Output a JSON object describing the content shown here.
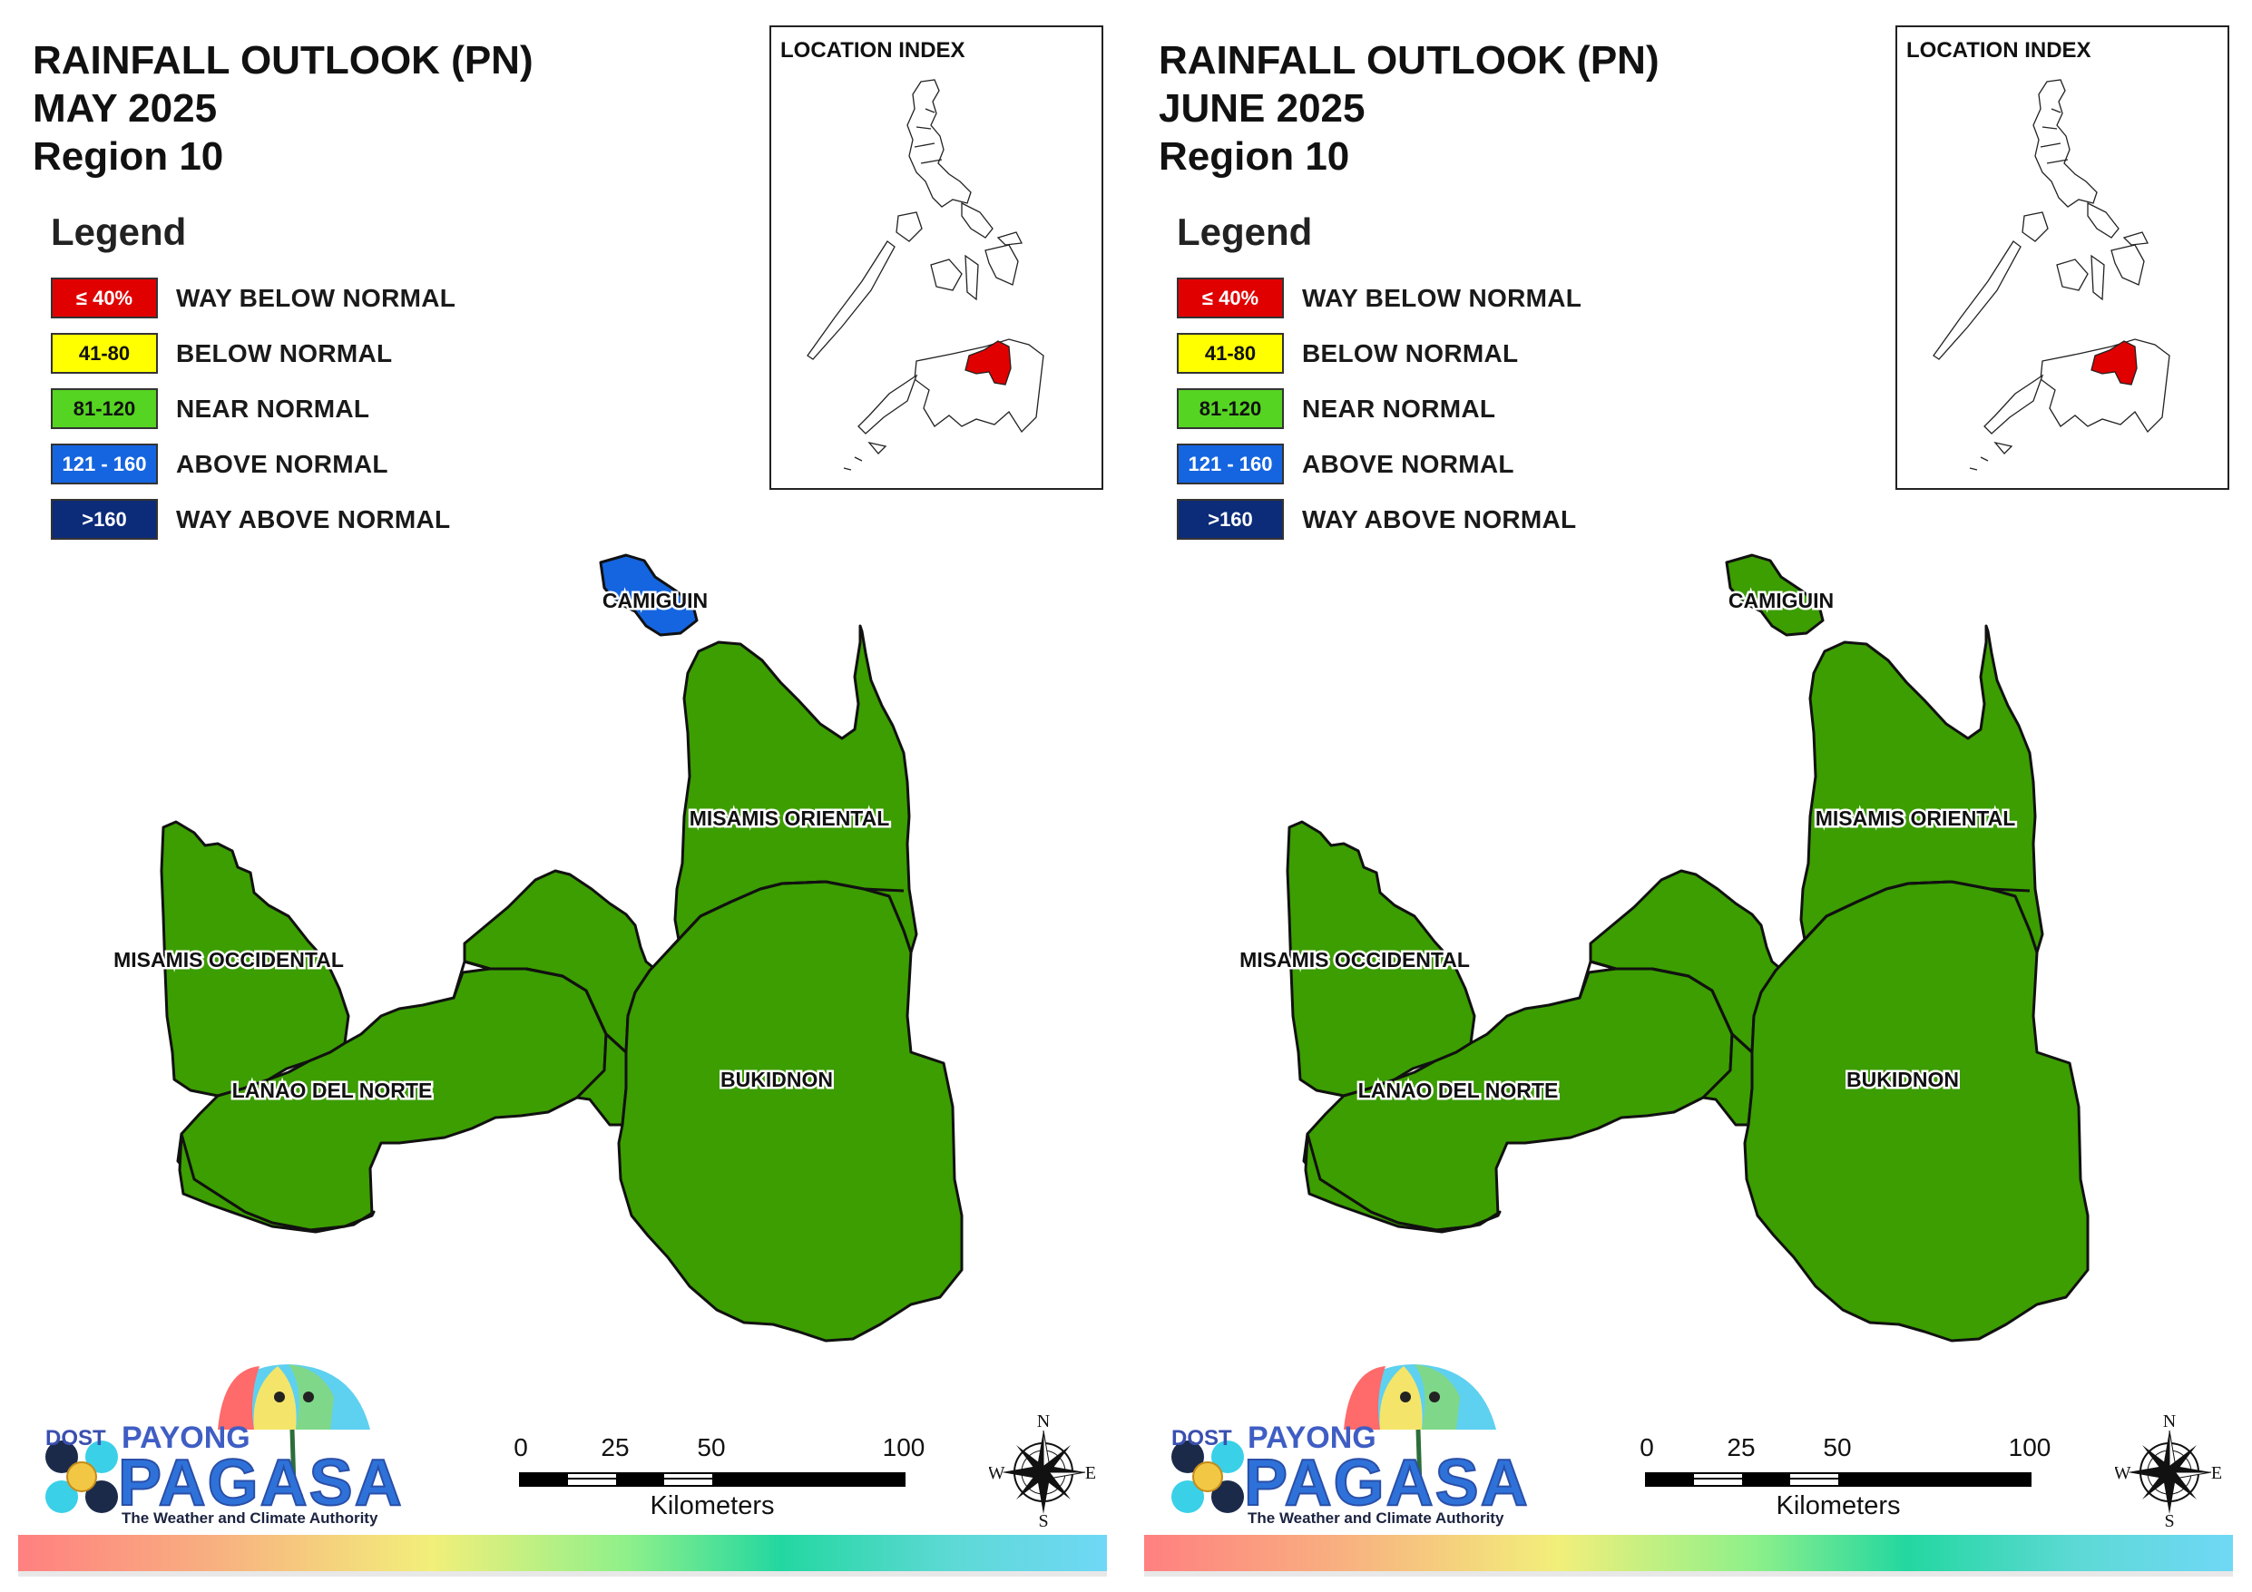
{
  "panels": [
    {
      "title_line1": "RAINFALL OUTLOOK (PN)",
      "title_line2": "MAY 2025",
      "title_line3": "Region 10",
      "legend_title": "Legend",
      "inset_title": "LOCATION INDEX",
      "provinces": {
        "camiguin": {
          "label": "CAMIGUIN",
          "category": "ABOVE NORMAL",
          "color": "#1565e0"
        },
        "misamis_oriental": {
          "label": "MISAMIS ORIENTAL",
          "category": "NEAR NORMAL",
          "color": "#3c9e00"
        },
        "misamis_occidental": {
          "label": "MISAMIS OCCIDENTAL",
          "category": "NEAR NORMAL",
          "color": "#3c9e00"
        },
        "lanao_del_norte": {
          "label": "LANAO DEL NORTE",
          "category": "NEAR NORMAL",
          "color": "#3c9e00"
        },
        "bukidnon": {
          "label": "BUKIDNON",
          "category": "NEAR NORMAL",
          "color": "#3c9e00"
        }
      }
    },
    {
      "title_line1": "RAINFALL OUTLOOK (PN)",
      "title_line2": "JUNE 2025",
      "title_line3": "Region 10",
      "legend_title": "Legend",
      "inset_title": "LOCATION INDEX",
      "provinces": {
        "camiguin": {
          "label": "CAMIGUIN",
          "category": "NEAR NORMAL",
          "color": "#3c9e00"
        },
        "misamis_oriental": {
          "label": "MISAMIS ORIENTAL",
          "category": "NEAR NORMAL",
          "color": "#3c9e00"
        },
        "misamis_occidental": {
          "label": "MISAMIS OCCIDENTAL",
          "category": "NEAR NORMAL",
          "color": "#3c9e00"
        },
        "lanao_del_norte": {
          "label": "LANAO DEL NORTE",
          "category": "NEAR NORMAL",
          "color": "#3c9e00"
        },
        "bukidnon": {
          "label": "BUKIDNON",
          "category": "NEAR NORMAL",
          "color": "#3c9e00"
        }
      }
    }
  ],
  "legend": [
    {
      "range": "≤ 40%",
      "label": "WAY BELOW NORMAL",
      "color": "#e00000",
      "text_color": "#ffffff"
    },
    {
      "range": "41-80",
      "label": "BELOW NORMAL",
      "color": "#ffff00",
      "text_color": "#111111"
    },
    {
      "range": "81-120",
      "label": "NEAR NORMAL",
      "color": "#55d422",
      "text_color": "#111111"
    },
    {
      "range": "121 - 160",
      "label": "ABOVE NORMAL",
      "color": "#1565e0",
      "text_color": "#ffffff"
    },
    {
      "range": ">160",
      "label": "WAY ABOVE NORMAL",
      "color": "#0c2b78",
      "text_color": "#ffffff"
    }
  ],
  "scale": {
    "ticks": [
      "0",
      "25",
      "50",
      "100"
    ],
    "unit": "Kilometers"
  },
  "compass": {
    "n": "N",
    "e": "E",
    "s": "S",
    "w": "W"
  },
  "logo": {
    "dost": "DOST",
    "payong": "PAYONG",
    "pagasa": "PAGASA",
    "tagline": "The Weather and Climate Authority"
  },
  "highlight_color": "#e00000"
}
